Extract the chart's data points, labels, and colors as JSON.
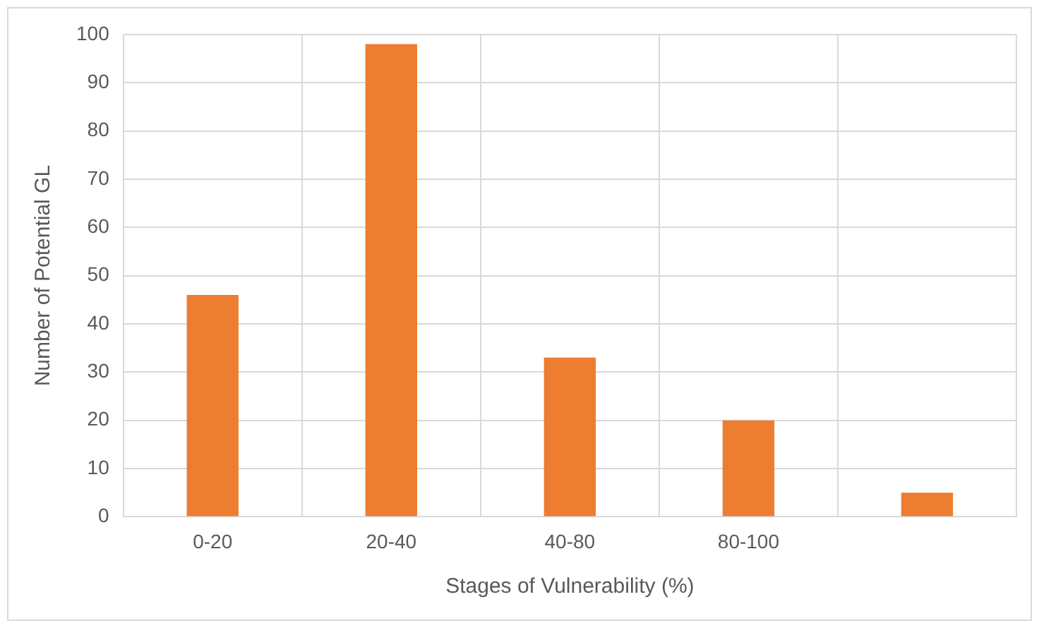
{
  "chart_data": {
    "type": "bar",
    "xlabel": "Stages of Vulnerability (%)",
    "ylabel": "Number of Potential GL",
    "categories": [
      "0-20",
      "20-40",
      "40-80",
      "80-100",
      null
    ],
    "values": [
      46,
      98,
      33,
      20,
      5
    ],
    "color": "#ed7d31",
    "ylim": [
      0,
      100
    ],
    "yticks": [
      0,
      10,
      20,
      30,
      40,
      50,
      60,
      70,
      80,
      90,
      100
    ],
    "grid": true
  }
}
